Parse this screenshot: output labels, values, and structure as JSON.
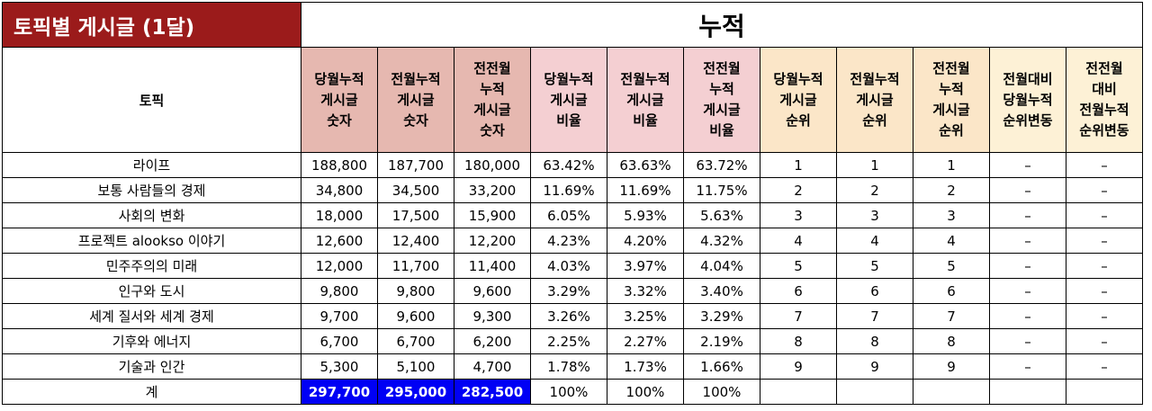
{
  "title": "토픽별 게시글 (1달)",
  "cumulative_label": "누적",
  "topic_header": "토픽",
  "columns": [
    {
      "label": "당월누적\n게시글\n숫자",
      "group": "count"
    },
    {
      "label": "전월누적\n게시글\n숫자",
      "group": "count"
    },
    {
      "label": "전전월\n누적\n게시글\n숫자",
      "group": "count"
    },
    {
      "label": "당월누적\n게시글\n비율",
      "group": "ratio"
    },
    {
      "label": "전월누적\n게시글\n비율",
      "group": "ratio"
    },
    {
      "label": "전전월\n누적\n게시글\n비율",
      "group": "ratio"
    },
    {
      "label": "당월누적\n게시글\n순위",
      "group": "rank"
    },
    {
      "label": "전월누적\n게시글\n순위",
      "group": "rank"
    },
    {
      "label": "전전월\n누적\n게시글\n순위",
      "group": "rank"
    },
    {
      "label": "전월대비\n당월누적\n순위변동",
      "group": "rankchg"
    },
    {
      "label": "전전월\n대비\n전월누적\n순위변동",
      "group": "rankchg"
    }
  ],
  "rows": [
    {
      "topic": "라이프",
      "values": [
        "188,800",
        "187,700",
        "180,000",
        "63.42%",
        "63.63%",
        "63.72%",
        "1",
        "1",
        "1",
        "–",
        "–"
      ]
    },
    {
      "topic": "보통 사람들의 경제",
      "values": [
        "34,800",
        "34,500",
        "33,200",
        "11.69%",
        "11.69%",
        "11.75%",
        "2",
        "2",
        "2",
        "–",
        "–"
      ]
    },
    {
      "topic": "사회의 변화",
      "values": [
        "18,000",
        "17,500",
        "15,900",
        "6.05%",
        "5.93%",
        "5.63%",
        "3",
        "3",
        "3",
        "–",
        "–"
      ]
    },
    {
      "topic": "프로젝트 alookso 이야기",
      "values": [
        "12,600",
        "12,400",
        "12,200",
        "4.23%",
        "4.20%",
        "4.32%",
        "4",
        "4",
        "4",
        "–",
        "–"
      ]
    },
    {
      "topic": "민주주의의 미래",
      "values": [
        "12,000",
        "11,700",
        "11,400",
        "4.03%",
        "3.97%",
        "4.04%",
        "5",
        "5",
        "5",
        "–",
        "–"
      ]
    },
    {
      "topic": "인구와 도시",
      "values": [
        "9,800",
        "9,800",
        "9,600",
        "3.29%",
        "3.32%",
        "3.40%",
        "6",
        "6",
        "6",
        "–",
        "–"
      ]
    },
    {
      "topic": "세계 질서와 세계 경제",
      "values": [
        "9,700",
        "9,600",
        "9,300",
        "3.26%",
        "3.25%",
        "3.29%",
        "7",
        "7",
        "7",
        "–",
        "–"
      ]
    },
    {
      "topic": "기후와 에너지",
      "values": [
        "6,700",
        "6,700",
        "6,200",
        "2.25%",
        "2.27%",
        "2.19%",
        "8",
        "8",
        "8",
        "–",
        "–"
      ]
    },
    {
      "topic": "기술과 인간",
      "values": [
        "5,300",
        "5,100",
        "4,700",
        "1.78%",
        "1.73%",
        "1.66%",
        "9",
        "9",
        "9",
        "–",
        "–"
      ]
    }
  ],
  "total": {
    "topic": "계",
    "values": [
      "297,700",
      "295,000",
      "282,500",
      "100%",
      "100%",
      "100%",
      "",
      "",
      "",
      "",
      ""
    ]
  },
  "colors": {
    "title_bg": "#9b1b1b",
    "count_bg": "#e6b8b0",
    "ratio_bg": "#f4cfd2",
    "rank_bg": "#fbe6c8",
    "rankchg_bg": "#fdf1d6",
    "highlight_bg": "#0000f5"
  }
}
